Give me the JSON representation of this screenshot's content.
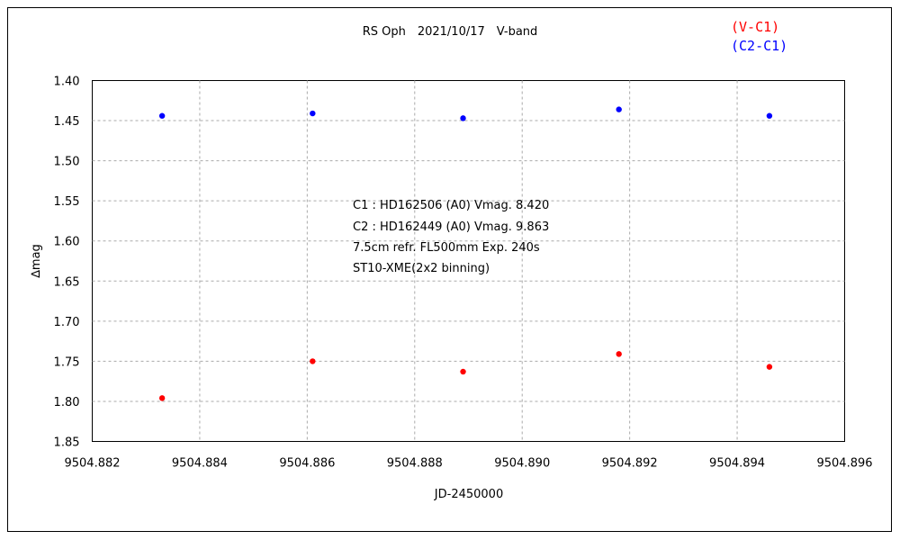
{
  "chart_data": {
    "type": "scatter",
    "title": "RS Oph　2021/10/17　V-band",
    "xlabel": "JD-2450000",
    "ylabel": "∆mag",
    "xlim": [
      9504.882,
      9504.896
    ],
    "ylim": [
      1.4,
      1.85
    ],
    "y_inverted": true,
    "grid": true,
    "x_ticks": [
      "9504.882",
      "9504.884",
      "9504.886",
      "9504.888",
      "9504.890",
      "9504.892",
      "9504.894",
      "9504.896"
    ],
    "y_ticks": [
      "1.40",
      "1.45",
      "1.50",
      "1.55",
      "1.60",
      "1.65",
      "1.70",
      "1.75",
      "1.80",
      "1.85"
    ],
    "legend_placement": "top-right",
    "series": [
      {
        "name": "(V-C1)",
        "color": "#ff0000",
        "points": [
          {
            "x": 9504.8833,
            "y": 1.796
          },
          {
            "x": 9504.8861,
            "y": 1.75
          },
          {
            "x": 9504.8889,
            "y": 1.763
          },
          {
            "x": 9504.8918,
            "y": 1.741
          },
          {
            "x": 9504.8946,
            "y": 1.757
          }
        ]
      },
      {
        "name": "(C2-C1)",
        "color": "#0000ff",
        "points": [
          {
            "x": 9504.8833,
            "y": 1.444
          },
          {
            "x": 9504.8861,
            "y": 1.441
          },
          {
            "x": 9504.8889,
            "y": 1.447
          },
          {
            "x": 9504.8918,
            "y": 1.436
          },
          {
            "x": 9504.8946,
            "y": 1.444
          }
        ]
      }
    ],
    "annotations": [
      "C1 : HD162506 (A0) Vmag. 8.420",
      "C2 : HD162449 (A0) Vmag. 9.863",
      "7.5cm refr. FL500mm Exp. 240s",
      "ST10-XME(2x2 binning)"
    ]
  }
}
